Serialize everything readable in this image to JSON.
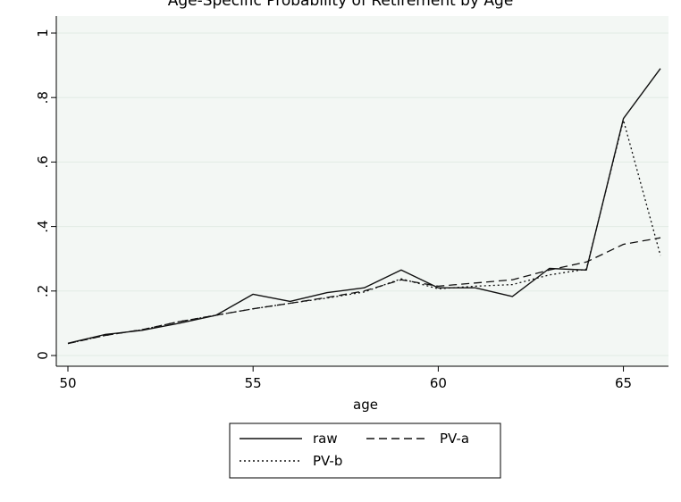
{
  "page_title_partial": "Age-Specific Probability of Retirement by Age",
  "chart_data": {
    "type": "line",
    "xlabel": "age",
    "ylabel": "",
    "xlim": [
      50,
      66
    ],
    "ylim": [
      0,
      1
    ],
    "x_ticks": [
      50,
      55,
      60,
      65
    ],
    "y_ticks": [
      0,
      0.2,
      0.4,
      0.6,
      0.8,
      1
    ],
    "y_tick_labels": [
      "0",
      ".2",
      ".4",
      ".6",
      ".8",
      "1"
    ],
    "grid": "horizontal",
    "legend_position": "bottom",
    "x": [
      50,
      51,
      52,
      53,
      54,
      55,
      56,
      57,
      58,
      59,
      60,
      61,
      62,
      63,
      64,
      65,
      66
    ],
    "series": [
      {
        "name": "raw",
        "style": "solid",
        "values": [
          0.038,
          0.065,
          0.078,
          0.1,
          0.125,
          0.19,
          0.168,
          0.195,
          0.21,
          0.265,
          0.21,
          0.21,
          0.183,
          0.27,
          0.265,
          0.735,
          0.89
        ]
      },
      {
        "name": "PV-a",
        "style": "dashed",
        "values": [
          0.037,
          0.062,
          0.08,
          0.105,
          0.125,
          0.145,
          0.162,
          0.18,
          0.2,
          0.235,
          0.215,
          0.225,
          0.235,
          0.265,
          0.29,
          0.345,
          0.365
        ]
      },
      {
        "name": "PV-b",
        "style": "dotted",
        "values": [
          0.037,
          0.062,
          0.08,
          0.105,
          0.125,
          0.145,
          0.162,
          0.178,
          0.197,
          0.238,
          0.207,
          0.215,
          0.22,
          0.25,
          0.268,
          0.73,
          0.31
        ]
      }
    ]
  }
}
